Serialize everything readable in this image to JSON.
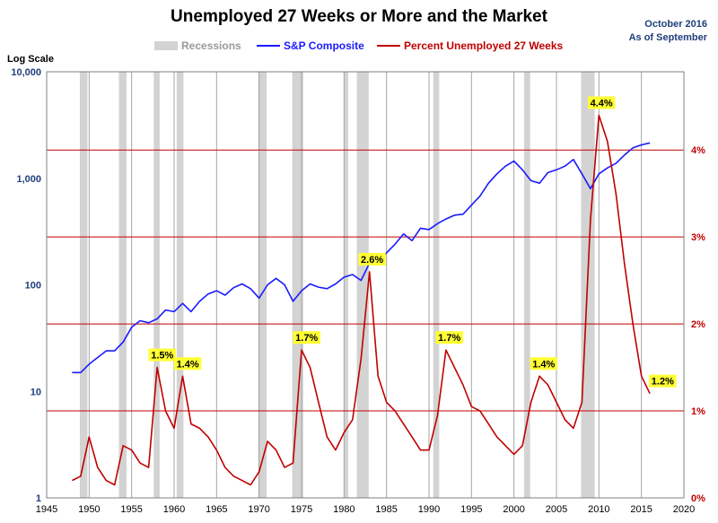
{
  "title": "Unemployed 27 Weeks or More and the Market",
  "date_note_line1": "October 2016",
  "date_note_line2": "As of September",
  "ylabel": "Log Scale",
  "legend": {
    "recessions": "Recessions",
    "sp": "S&P Composite",
    "unemp": "Percent Unemployed 27 Weeks"
  },
  "colors": {
    "sp": "#1a1aff",
    "unemp": "#c00000",
    "recession": "#d3d3d3",
    "annotation_bg": "#ffff33",
    "right_axis": "#c00000"
  },
  "chart_data": {
    "type": "line",
    "x_range": [
      1945,
      2020
    ],
    "x_ticks": [
      "1945",
      "1950",
      "1955",
      "1960",
      "1965",
      "1970",
      "1975",
      "1980",
      "1985",
      "1990",
      "1995",
      "2000",
      "2005",
      "2010",
      "2015",
      "2020"
    ],
    "left_axis": {
      "scale": "log",
      "range": [
        1,
        10000
      ],
      "ticks": [
        "1",
        "10",
        "100",
        "1,000",
        "10,000"
      ]
    },
    "right_axis": {
      "range": [
        0,
        4.9
      ],
      "ticks": [
        "0%",
        "1%",
        "2%",
        "3%",
        "4%"
      ]
    },
    "recessions": [
      [
        1948.9,
        1949.8
      ],
      [
        1953.5,
        1954.4
      ],
      [
        1957.6,
        1958.3
      ],
      [
        1960.3,
        1961.1
      ],
      [
        1969.9,
        1970.9
      ],
      [
        1973.9,
        1975.2
      ],
      [
        1980.0,
        1980.5
      ],
      [
        1981.5,
        1982.9
      ],
      [
        1990.5,
        1991.2
      ],
      [
        2001.2,
        2001.9
      ],
      [
        2007.9,
        2009.5
      ]
    ],
    "series": [
      {
        "name": "S&P Composite",
        "axis": "left",
        "points": [
          [
            1948,
            15
          ],
          [
            1949,
            15
          ],
          [
            1950,
            18
          ],
          [
            1952,
            24
          ],
          [
            1953,
            24
          ],
          [
            1954,
            29
          ],
          [
            1955,
            40
          ],
          [
            1956,
            46
          ],
          [
            1957,
            44
          ],
          [
            1958,
            48
          ],
          [
            1959,
            58
          ],
          [
            1960,
            56
          ],
          [
            1961,
            67
          ],
          [
            1962,
            56
          ],
          [
            1963,
            70
          ],
          [
            1964,
            82
          ],
          [
            1965,
            88
          ],
          [
            1966,
            80
          ],
          [
            1967,
            94
          ],
          [
            1968,
            102
          ],
          [
            1969,
            92
          ],
          [
            1970,
            75
          ],
          [
            1971,
            100
          ],
          [
            1972,
            115
          ],
          [
            1973,
            100
          ],
          [
            1974,
            70
          ],
          [
            1975,
            88
          ],
          [
            1976,
            102
          ],
          [
            1977,
            95
          ],
          [
            1978,
            92
          ],
          [
            1979,
            102
          ],
          [
            1980,
            118
          ],
          [
            1981,
            125
          ],
          [
            1982,
            110
          ],
          [
            1983,
            160
          ],
          [
            1984,
            165
          ],
          [
            1985,
            200
          ],
          [
            1986,
            240
          ],
          [
            1987,
            300
          ],
          [
            1988,
            260
          ],
          [
            1989,
            340
          ],
          [
            1990,
            330
          ],
          [
            1991,
            375
          ],
          [
            1992,
            415
          ],
          [
            1993,
            450
          ],
          [
            1994,
            460
          ],
          [
            1995,
            560
          ],
          [
            1996,
            680
          ],
          [
            1997,
            900
          ],
          [
            1998,
            1100
          ],
          [
            1999,
            1300
          ],
          [
            2000,
            1450
          ],
          [
            2001,
            1200
          ],
          [
            2002,
            950
          ],
          [
            2003,
            900
          ],
          [
            2004,
            1130
          ],
          [
            2005,
            1200
          ],
          [
            2006,
            1300
          ],
          [
            2007,
            1500
          ],
          [
            2008,
            1100
          ],
          [
            2009,
            800
          ],
          [
            2010,
            1100
          ],
          [
            2011,
            1250
          ],
          [
            2012,
            1380
          ],
          [
            2013,
            1650
          ],
          [
            2014,
            1930
          ],
          [
            2015,
            2060
          ],
          [
            2016,
            2150
          ]
        ]
      },
      {
        "name": "Percent Unemployed 27 Weeks",
        "axis": "right",
        "points": [
          [
            1948,
            0.2
          ],
          [
            1949,
            0.25
          ],
          [
            1950,
            0.7
          ],
          [
            1951,
            0.35
          ],
          [
            1952,
            0.2
          ],
          [
            1953,
            0.15
          ],
          [
            1954,
            0.6
          ],
          [
            1955,
            0.55
          ],
          [
            1956,
            0.4
          ],
          [
            1957,
            0.35
          ],
          [
            1958,
            1.5
          ],
          [
            1959,
            1.0
          ],
          [
            1960,
            0.8
          ],
          [
            1961,
            1.4
          ],
          [
            1962,
            0.85
          ],
          [
            1963,
            0.8
          ],
          [
            1964,
            0.7
          ],
          [
            1965,
            0.55
          ],
          [
            1966,
            0.35
          ],
          [
            1967,
            0.25
          ],
          [
            1968,
            0.2
          ],
          [
            1969,
            0.15
          ],
          [
            1970,
            0.3
          ],
          [
            1971,
            0.65
          ],
          [
            1972,
            0.55
          ],
          [
            1973,
            0.35
          ],
          [
            1974,
            0.4
          ],
          [
            1975,
            1.7
          ],
          [
            1976,
            1.5
          ],
          [
            1977,
            1.1
          ],
          [
            1978,
            0.7
          ],
          [
            1979,
            0.55
          ],
          [
            1980,
            0.75
          ],
          [
            1981,
            0.9
          ],
          [
            1982,
            1.6
          ],
          [
            1983,
            2.6
          ],
          [
            1984,
            1.4
          ],
          [
            1985,
            1.1
          ],
          [
            1986,
            1.0
          ],
          [
            1987,
            0.85
          ],
          [
            1988,
            0.7
          ],
          [
            1989,
            0.55
          ],
          [
            1990,
            0.55
          ],
          [
            1991,
            0.95
          ],
          [
            1992,
            1.7
          ],
          [
            1993,
            1.5
          ],
          [
            1994,
            1.3
          ],
          [
            1995,
            1.05
          ],
          [
            1996,
            1.0
          ],
          [
            1997,
            0.85
          ],
          [
            1998,
            0.7
          ],
          [
            1999,
            0.6
          ],
          [
            2000,
            0.5
          ],
          [
            2001,
            0.6
          ],
          [
            2002,
            1.1
          ],
          [
            2003,
            1.4
          ],
          [
            2004,
            1.3
          ],
          [
            2005,
            1.1
          ],
          [
            2006,
            0.9
          ],
          [
            2007,
            0.8
          ],
          [
            2008,
            1.1
          ],
          [
            2009,
            3.2
          ],
          [
            2010,
            4.4
          ],
          [
            2011,
            4.1
          ],
          [
            2012,
            3.5
          ],
          [
            2013,
            2.7
          ],
          [
            2014,
            2.0
          ],
          [
            2015,
            1.4
          ],
          [
            2016,
            1.2
          ]
        ]
      }
    ],
    "annotations": [
      {
        "x": 1958.6,
        "y": 1.5,
        "label": "1.5%"
      },
      {
        "x": 1961.6,
        "y": 1.4,
        "label": "1.4%"
      },
      {
        "x": 1975.6,
        "y": 1.7,
        "label": "1.7%"
      },
      {
        "x": 1983.3,
        "y": 2.6,
        "label": "2.6%"
      },
      {
        "x": 1992.4,
        "y": 1.7,
        "label": "1.7%"
      },
      {
        "x": 2003.5,
        "y": 1.4,
        "label": "1.4%"
      },
      {
        "x": 2010.3,
        "y": 4.4,
        "label": "4.4%"
      },
      {
        "x": 2017.5,
        "y": 1.2,
        "label": "1.2%"
      }
    ]
  }
}
